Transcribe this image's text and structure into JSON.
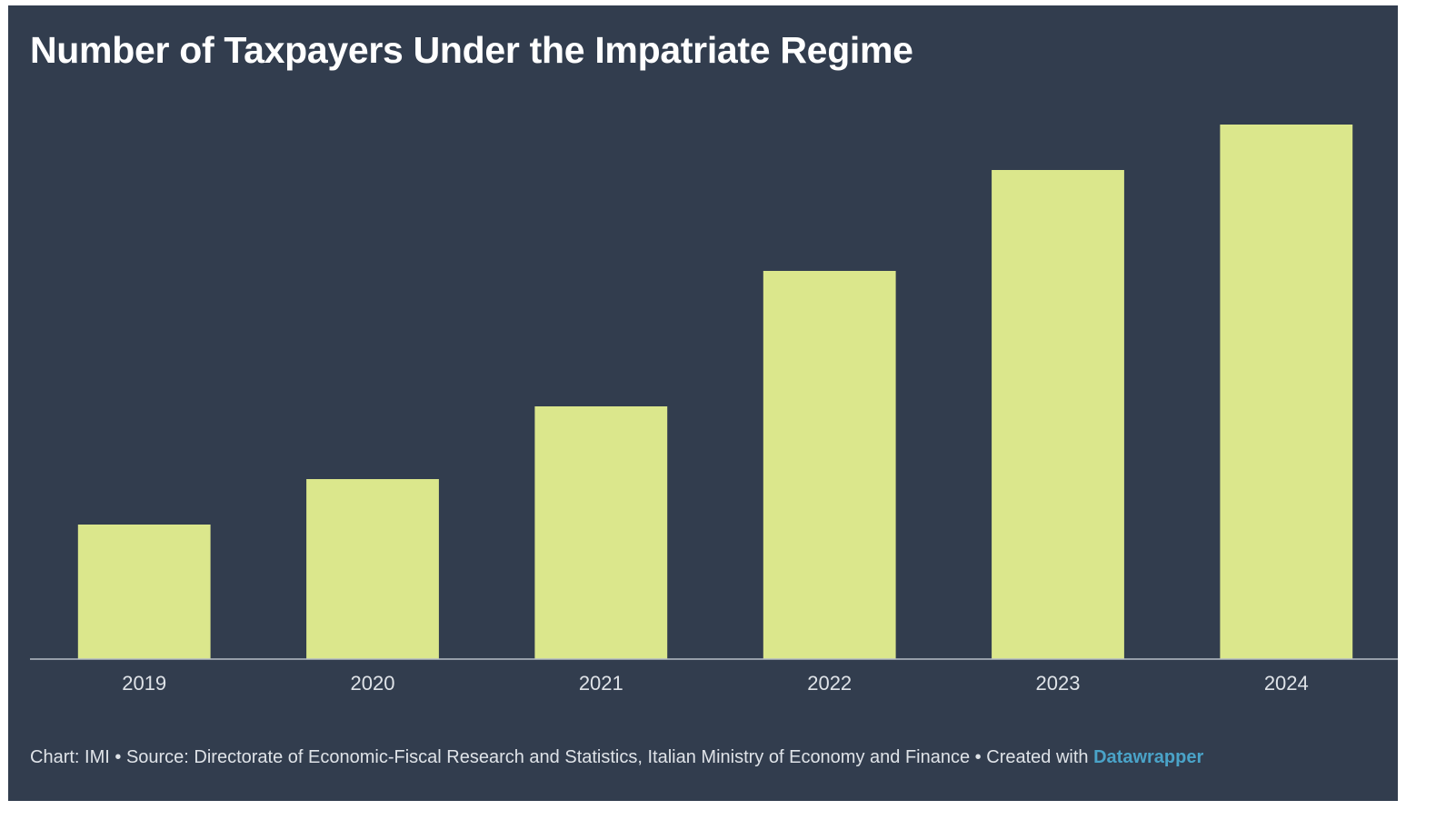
{
  "title": "Number of Taxpayers Under the Impatriate Regime",
  "footer": {
    "chart_credit": "Chart: IMI",
    "separator": "•",
    "source": "Source: Directorate of Economic-Fiscal Research and Statistics, Italian Ministry of Economy and Finance",
    "created_with": "Created with",
    "brand": "Datawrapper"
  },
  "colors": {
    "background": "#323d4e",
    "bar": "#dbe78c",
    "axis": "#b8bec7",
    "text": "#dfe3e8",
    "brand": "#4aa3c8"
  },
  "chart_data": {
    "type": "bar",
    "title": "Number of Taxpayers Under the Impatriate Regime",
    "xlabel": "",
    "ylabel": "",
    "categories": [
      "2019",
      "2020",
      "2021",
      "2022",
      "2023",
      "2024"
    ],
    "values": [
      14.8,
      19.8,
      27.8,
      42.7,
      53.8,
      58.8
    ],
    "ylim": [
      0,
      60
    ],
    "grid": false,
    "legend": "none",
    "note": ""
  }
}
